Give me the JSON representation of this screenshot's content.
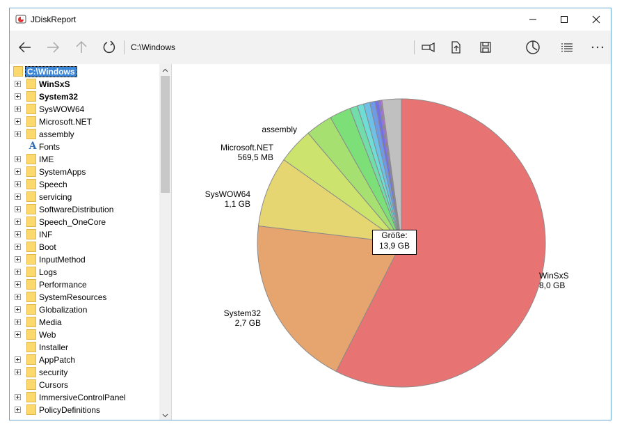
{
  "window": {
    "title": "JDiskReport",
    "path": "C:\\Windows"
  },
  "colors": {
    "accent": "#3b86d6",
    "border": "#6aa5d8",
    "toolbar_bg": "#f2f2f2"
  },
  "toolbar": {
    "icons": [
      "back-arrow-icon",
      "forward-arrow-icon",
      "up-arrow-icon",
      "refresh-icon",
      "flashlight-icon",
      "export-icon",
      "save-icon",
      "pie-chart-view-icon",
      "list-view-icon",
      "more-icon"
    ]
  },
  "tree": {
    "root": "C:\\Windows",
    "items": [
      {
        "label": "WinSxS",
        "bold": true,
        "expandable": true,
        "icon": "folder"
      },
      {
        "label": "System32",
        "bold": true,
        "expandable": true,
        "icon": "folder"
      },
      {
        "label": "SysWOW64",
        "bold": false,
        "expandable": true,
        "icon": "folder"
      },
      {
        "label": "Microsoft.NET",
        "bold": false,
        "expandable": true,
        "icon": "folder"
      },
      {
        "label": "assembly",
        "bold": false,
        "expandable": true,
        "icon": "folder"
      },
      {
        "label": "Fonts",
        "bold": false,
        "expandable": false,
        "icon": "font"
      },
      {
        "label": "IME",
        "bold": false,
        "expandable": true,
        "icon": "folder"
      },
      {
        "label": "SystemApps",
        "bold": false,
        "expandable": true,
        "icon": "folder"
      },
      {
        "label": "Speech",
        "bold": false,
        "expandable": true,
        "icon": "folder"
      },
      {
        "label": "servicing",
        "bold": false,
        "expandable": true,
        "icon": "folder"
      },
      {
        "label": "SoftwareDistribution",
        "bold": false,
        "expandable": true,
        "icon": "folder"
      },
      {
        "label": "Speech_OneCore",
        "bold": false,
        "expandable": true,
        "icon": "folder"
      },
      {
        "label": "INF",
        "bold": false,
        "expandable": true,
        "icon": "folder"
      },
      {
        "label": "Boot",
        "bold": false,
        "expandable": true,
        "icon": "folder"
      },
      {
        "label": "InputMethod",
        "bold": false,
        "expandable": true,
        "icon": "folder"
      },
      {
        "label": "Logs",
        "bold": false,
        "expandable": true,
        "icon": "folder"
      },
      {
        "label": "Performance",
        "bold": false,
        "expandable": true,
        "icon": "folder"
      },
      {
        "label": "SystemResources",
        "bold": false,
        "expandable": true,
        "icon": "folder"
      },
      {
        "label": "Globalization",
        "bold": false,
        "expandable": true,
        "icon": "folder"
      },
      {
        "label": "Media",
        "bold": false,
        "expandable": true,
        "icon": "folder"
      },
      {
        "label": "Web",
        "bold": false,
        "expandable": true,
        "icon": "folder"
      },
      {
        "label": "Installer",
        "bold": false,
        "expandable": false,
        "icon": "folder"
      },
      {
        "label": "AppPatch",
        "bold": false,
        "expandable": true,
        "icon": "folder"
      },
      {
        "label": "security",
        "bold": false,
        "expandable": true,
        "icon": "folder"
      },
      {
        "label": "Cursors",
        "bold": false,
        "expandable": false,
        "icon": "folder"
      },
      {
        "label": "ImmersiveControlPanel",
        "bold": false,
        "expandable": true,
        "icon": "folder"
      },
      {
        "label": "PolicyDefinitions",
        "bold": false,
        "expandable": true,
        "icon": "folder"
      }
    ]
  },
  "chart_data": {
    "type": "pie",
    "total_label": "Größe:",
    "total_value": "13,9 GB",
    "slices": [
      {
        "name": "WinSxS",
        "size": "8,0 GB",
        "value": 8.0,
        "color": "#e87373"
      },
      {
        "name": "System32",
        "size": "2,7 GB",
        "value": 2.7,
        "color": "#e6a46e"
      },
      {
        "name": "SysWOW64",
        "size": "1,1 GB",
        "value": 1.1,
        "color": "#e6d672"
      },
      {
        "name": "Microsoft.NET",
        "size": "569,5 MB",
        "value": 0.556,
        "color": "#cce36e"
      },
      {
        "name": "assembly",
        "size": "",
        "value": 0.42,
        "color": "#a6e070"
      },
      {
        "name": "",
        "size": "",
        "value": 0.33,
        "color": "#7ddf78"
      },
      {
        "name": "",
        "size": "",
        "value": 0.12,
        "color": "#72ddaa"
      },
      {
        "name": "",
        "size": "",
        "value": 0.1,
        "color": "#70dcd6"
      },
      {
        "name": "",
        "size": "",
        "value": 0.1,
        "color": "#6fc0e6"
      },
      {
        "name": "",
        "size": "",
        "value": 0.08,
        "color": "#6f9ae6"
      },
      {
        "name": "",
        "size": "",
        "value": 0.06,
        "color": "#7272e6"
      },
      {
        "name": "",
        "size": "",
        "value": 0.03,
        "color": "#9a72e6"
      },
      {
        "name": "",
        "size": "",
        "value": 0.02,
        "color": "#c872e6"
      },
      {
        "name": "",
        "size": "",
        "value": 0.3,
        "color": "#c0c0c0"
      }
    ]
  }
}
